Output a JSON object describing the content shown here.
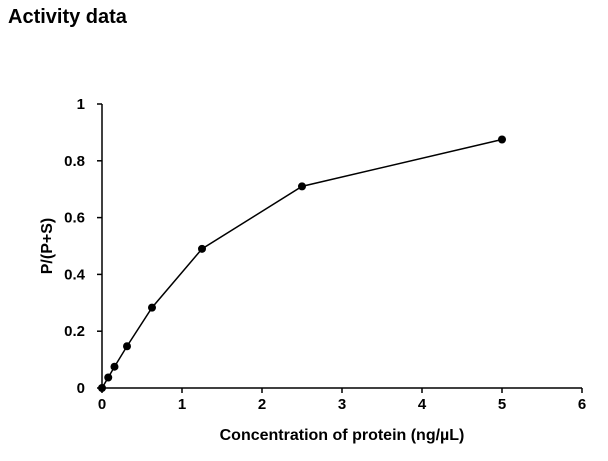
{
  "chart_data": {
    "type": "line",
    "title": "Activity data",
    "xlabel": "Concentration of protein (ng/µL)",
    "ylabel": "P/(P+S)",
    "xlim": [
      0,
      6
    ],
    "ylim": [
      0,
      1
    ],
    "x_ticks": [
      0,
      1,
      2,
      3,
      4,
      5,
      6
    ],
    "y_ticks": [
      0,
      0.2,
      0.4,
      0.6,
      0.8,
      1
    ],
    "x_tick_labels": [
      "0",
      "1",
      "2",
      "3",
      "4",
      "5",
      "6"
    ],
    "y_tick_labels": [
      "0",
      "0.2",
      "0.4",
      "0.6",
      "0.8",
      "1"
    ],
    "grid": false,
    "legend": "none",
    "series": [
      {
        "color": "#000000",
        "points": [
          {
            "x": 0,
            "y": 0
          },
          {
            "x": 0.078,
            "y": 0.037
          },
          {
            "x": 0.156,
            "y": 0.075
          },
          {
            "x": 0.3125,
            "y": 0.147
          },
          {
            "x": 0.625,
            "y": 0.283
          },
          {
            "x": 1.25,
            "y": 0.49
          },
          {
            "x": 2.5,
            "y": 0.71
          },
          {
            "x": 5,
            "y": 0.875
          }
        ]
      }
    ]
  }
}
